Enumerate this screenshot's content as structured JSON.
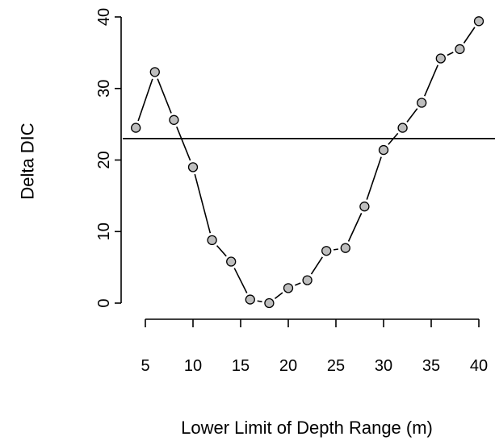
{
  "chart_data": {
    "type": "scatter",
    "title": "",
    "xlabel": "Lower Limit of Depth Range (m)",
    "ylabel": "Delta DIC",
    "xlim": [
      4,
      40
    ],
    "ylim": [
      0,
      40
    ],
    "xticks": [
      5,
      10,
      15,
      20,
      25,
      30,
      35,
      40
    ],
    "yticks": [
      0,
      10,
      20,
      30,
      40
    ],
    "hline": 23,
    "grid": false,
    "legend": "none",
    "point_color": "#bebebe",
    "x": [
      4,
      6,
      8,
      10,
      12,
      14,
      16,
      18,
      20,
      22,
      24,
      26,
      28,
      30,
      32,
      34,
      36,
      38,
      40
    ],
    "y": [
      24.5,
      32.3,
      25.6,
      19.0,
      8.8,
      5.8,
      0.5,
      0.0,
      2.1,
      3.2,
      7.3,
      7.7,
      13.5,
      21.4,
      24.5,
      28.0,
      34.2,
      35.5,
      39.4
    ]
  }
}
